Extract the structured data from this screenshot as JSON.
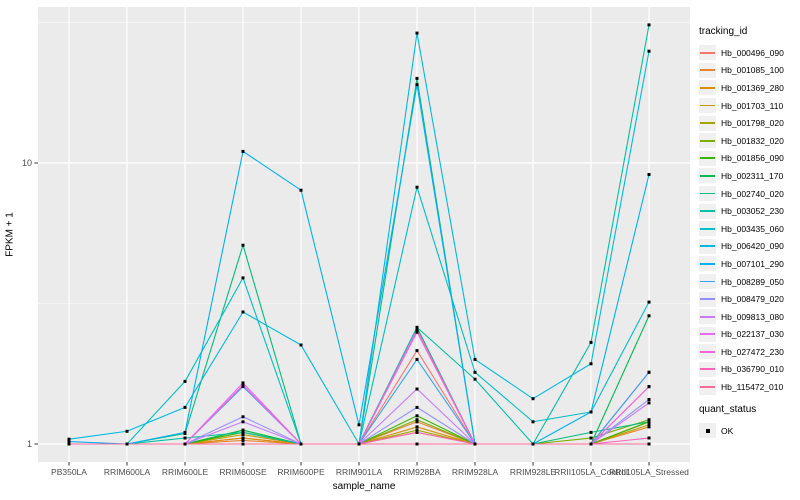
{
  "chart_data": {
    "type": "line",
    "xlabel": "sample_name",
    "ylabel": "FPKM + 1",
    "y_scale": "log10",
    "y_ticks": [
      1,
      10
    ],
    "y_tick_labels": [
      "1",
      "10"
    ],
    "y_minor": [
      3.162,
      31.62
    ],
    "ylim": [
      0.86,
      36
    ],
    "grid": "on",
    "legend_position": "right",
    "legend_title": "tracking_id",
    "point_marker": {
      "shape": "square",
      "color": "#000000",
      "meaning": "quant_status OK"
    },
    "quant_legend": {
      "title": "quant_status",
      "items": [
        {
          "label": "OK",
          "marker": "square",
          "color": "#000000"
        }
      ]
    },
    "panel_bg": "#EBEBEB",
    "grid_color": "#FFFFFF",
    "tick_label_color": "#4D4D4D",
    "categories": [
      "PB350LA",
      "RRIM600LA",
      "RRIM600LE",
      "RRIM600SE",
      "RRIM600PE",
      "RRIM901LA",
      "RRIM928BA",
      "RRIM928LA",
      "RRIM928LE",
      "RRII105LA_Control",
      "RRII105LA_Stressed"
    ],
    "series": [
      {
        "name": "Hb_000496_090",
        "color": "#F8766D",
        "values": [
          1,
          1,
          1,
          1.05,
          1,
          1,
          2.15,
          1,
          1,
          1,
          1.8
        ]
      },
      {
        "name": "Hb_001085_100",
        "color": "#EA8331",
        "values": [
          1,
          1,
          1,
          1.03,
          1,
          1,
          1.2,
          1,
          1,
          1,
          1.15
        ]
      },
      {
        "name": "Hb_001369_280",
        "color": "#D89000",
        "values": [
          1,
          1,
          1,
          1.05,
          1,
          1,
          1.15,
          1,
          1,
          1,
          1.2
        ]
      },
      {
        "name": "Hb_001703_110",
        "color": "#C09B00",
        "values": [
          1,
          1,
          1,
          1.08,
          1,
          1,
          1.1,
          1,
          1,
          1,
          1.17
        ]
      },
      {
        "name": "Hb_001798_020",
        "color": "#A3A500",
        "values": [
          1,
          1,
          1,
          1.1,
          1,
          1,
          1.12,
          1,
          1,
          1,
          1.2
        ]
      },
      {
        "name": "Hb_001832_020",
        "color": "#7CAE00",
        "values": [
          1,
          1,
          1,
          1.12,
          1,
          1,
          1.22,
          1,
          1,
          1.05,
          1.22
        ]
      },
      {
        "name": "Hb_001856_090",
        "color": "#39B600",
        "values": [
          1,
          1,
          1,
          1.1,
          1,
          1,
          1.26,
          1,
          1,
          1,
          1.2
        ]
      },
      {
        "name": "Hb_002311_170",
        "color": "#00BB4E",
        "values": [
          1,
          1,
          1,
          1.12,
          1,
          1,
          2.6,
          1,
          1,
          1,
          2.86
        ]
      },
      {
        "name": "Hb_002740_020",
        "color": "#00BF7D",
        "values": [
          1,
          1,
          1.09,
          5.1,
          1,
          1,
          20.0,
          1,
          1,
          1.1,
          1.2
        ]
      },
      {
        "name": "Hb_003052_230",
        "color": "#00C1A3",
        "values": [
          1,
          1,
          1.05,
          1.1,
          1,
          1,
          2.6,
          1.7,
          1,
          2.3,
          31.0
        ]
      },
      {
        "name": "Hb_003435_060",
        "color": "#00BFC4",
        "values": [
          1,
          1,
          1.67,
          3.9,
          1,
          1,
          8.2,
          1.8,
          1.2,
          1.3,
          3.2
        ]
      },
      {
        "name": "Hb_006420_090",
        "color": "#00BAE0",
        "values": [
          1.04,
          1.11,
          1.35,
          2.95,
          2.25,
          1,
          29.0,
          2.0,
          1.45,
          1.93,
          25.0
        ]
      },
      {
        "name": "Hb_007101_290",
        "color": "#00B0F6",
        "values": [
          1.02,
          1,
          1.1,
          11.0,
          8.0,
          1.17,
          19.0,
          1,
          1,
          1.3,
          9.1
        ]
      },
      {
        "name": "Hb_008289_050",
        "color": "#35A2FF",
        "values": [
          1,
          1,
          1,
          1.6,
          1,
          1,
          2.0,
          1,
          1,
          1,
          1.8
        ]
      },
      {
        "name": "Hb_008479_020",
        "color": "#9590FF",
        "values": [
          1,
          1,
          1,
          1.25,
          1,
          1,
          1.35,
          1,
          1,
          1,
          1.44
        ]
      },
      {
        "name": "Hb_009813_080",
        "color": "#C77CFF",
        "values": [
          1,
          1,
          1,
          1.2,
          1,
          1,
          1.57,
          1,
          1,
          1,
          1.4
        ]
      },
      {
        "name": "Hb_022137_030",
        "color": "#E76BF3",
        "values": [
          1,
          1,
          1,
          1.65,
          1,
          1,
          2.55,
          1,
          1,
          1,
          1.6
        ]
      },
      {
        "name": "Hb_027472_230",
        "color": "#FA62DB",
        "values": [
          1,
          1,
          1,
          1.62,
          1,
          1,
          2.5,
          1,
          1,
          1,
          1.6
        ]
      },
      {
        "name": "Hb_036790_010",
        "color": "#FF62BC",
        "values": [
          1,
          1,
          1,
          1,
          1,
          1,
          1.1,
          1,
          1,
          1,
          1.05
        ]
      },
      {
        "name": "Hb_115472_010",
        "color": "#FF6A98",
        "values": [
          1,
          1,
          1,
          1,
          1,
          1,
          1,
          1,
          1,
          1,
          1
        ]
      }
    ]
  }
}
